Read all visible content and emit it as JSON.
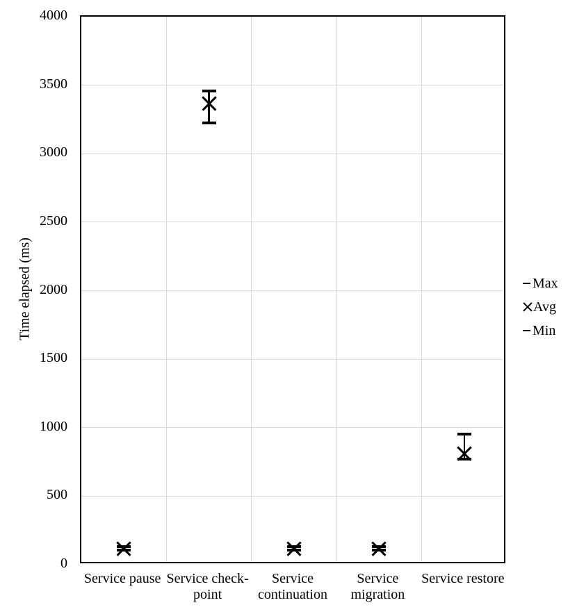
{
  "chart_data": {
    "type": "scatter",
    "subtype": "high-low-close error markers",
    "title": "",
    "xlabel": "",
    "ylabel": "Time elapsed (ms)",
    "ylim": [
      0,
      4000
    ],
    "yticks": [
      0,
      500,
      1000,
      1500,
      2000,
      2500,
      3000,
      3500,
      4000
    ],
    "grid": true,
    "categories": [
      "Service pause",
      "Service check-point",
      "Service continuation",
      "Service migration",
      "Service restore"
    ],
    "series": [
      {
        "name": "Max",
        "marker": "dash",
        "values": [
          130,
          3460,
          130,
          130,
          955
        ]
      },
      {
        "name": "Avg",
        "marker": "x",
        "values": [
          115,
          3365,
          115,
          115,
          810
        ]
      },
      {
        "name": "Min",
        "marker": "dash",
        "values": [
          105,
          3225,
          105,
          105,
          770
        ]
      }
    ],
    "legend": {
      "position": "right",
      "items": [
        {
          "marker": "dash",
          "label": "Max"
        },
        {
          "marker": "x",
          "label": "Avg"
        },
        {
          "marker": "dash",
          "label": "Min"
        }
      ]
    },
    "colors": {
      "marker": "#000000",
      "gridline": "#d9d9d9",
      "axis": "#000000",
      "text": "#000000",
      "background": "#ffffff"
    }
  }
}
